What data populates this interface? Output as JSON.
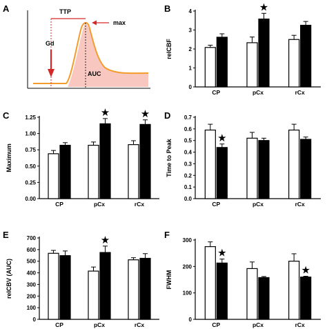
{
  "panel_letters": [
    "A",
    "B",
    "C",
    "D",
    "E",
    "F"
  ],
  "chart_data": [
    {
      "panel": "A",
      "type": "area",
      "annotations": [
        "TTP",
        "max",
        "Gd",
        "AUC"
      ],
      "colors": {
        "curve": "#f39c2b",
        "fill": "#f8c8c0",
        "ttp_line": "#d62728",
        "gd_arrow": "#d62728"
      }
    },
    {
      "panel": "B",
      "type": "bar",
      "categories": [
        "CP",
        "pCx",
        "rCx"
      ],
      "series": [
        {
          "values": [
            2.08,
            2.33,
            2.5
          ]
        },
        {
          "values": [
            2.62,
            3.58,
            3.25
          ]
        }
      ],
      "errors": [
        [
          0.12,
          0.3,
          0.22
        ],
        [
          0.18,
          0.3,
          0.2
        ]
      ],
      "ylabel": "relCBF",
      "ylim": [
        0,
        4
      ],
      "yticks": [
        "0",
        "1",
        "2",
        "3",
        "4"
      ],
      "significant": [
        false,
        true,
        false
      ]
    },
    {
      "panel": "C",
      "type": "bar",
      "categories": [
        "CP",
        "pCx",
        "rCx"
      ],
      "series": [
        {
          "values": [
            0.69,
            0.82,
            0.83
          ]
        },
        {
          "values": [
            0.82,
            1.15,
            1.14
          ]
        }
      ],
      "errors": [
        [
          0.05,
          0.05,
          0.06
        ],
        [
          0.04,
          0.08,
          0.07
        ]
      ],
      "ylabel": "Maximum",
      "ylim": [
        0,
        1.25
      ],
      "yticks": [
        "0.00",
        "0.25",
        "0.50",
        "0.75",
        "1.00",
        "1.25"
      ],
      "significant": [
        false,
        true,
        true
      ]
    },
    {
      "panel": "D",
      "type": "bar",
      "categories": [
        "CP",
        "pCx",
        "rCx"
      ],
      "series": [
        {
          "values": [
            0.59,
            0.52,
            0.59
          ]
        },
        {
          "values": [
            0.44,
            0.5,
            0.51
          ]
        }
      ],
      "errors": [
        [
          0.05,
          0.05,
          0.05
        ],
        [
          0.03,
          0.02,
          0.02
        ]
      ],
      "ylabel": "Time to Peak",
      "ylim": [
        0,
        0.7
      ],
      "yticks": [
        "0.0",
        "0.1",
        "0.2",
        "0.3",
        "0.4",
        "0.5",
        "0.6",
        "0.7"
      ],
      "significant": [
        true,
        false,
        false
      ]
    },
    {
      "panel": "E",
      "type": "bar",
      "categories": [
        "CP",
        "pCx",
        "rCx"
      ],
      "series": [
        {
          "values": [
            568,
            415,
            512
          ]
        },
        {
          "values": [
            548,
            575,
            525
          ]
        }
      ],
      "errors": [
        [
          25,
          35,
          18
        ],
        [
          40,
          55,
          40
        ]
      ],
      "ylabel": "relCBV (AUC)",
      "ylim": [
        0,
        700
      ],
      "yticks": [
        "0",
        "100",
        "200",
        "300",
        "400",
        "500",
        "600",
        "700"
      ],
      "significant": [
        false,
        true,
        false
      ]
    },
    {
      "panel": "F",
      "type": "bar",
      "categories": [
        "CP",
        "pCx",
        "rCx"
      ],
      "series": [
        {
          "values": [
            275,
            192,
            220
          ]
        },
        {
          "values": [
            213,
            158,
            160
          ]
        }
      ],
      "errors": [
        [
          18,
          25,
          28
        ],
        [
          15,
          4,
          3
        ]
      ],
      "ylabel": "FWHM",
      "ylim": [
        0,
        300
      ],
      "yticks": [
        "0",
        "100",
        "200",
        "300"
      ],
      "significant": [
        true,
        false,
        true
      ]
    }
  ]
}
